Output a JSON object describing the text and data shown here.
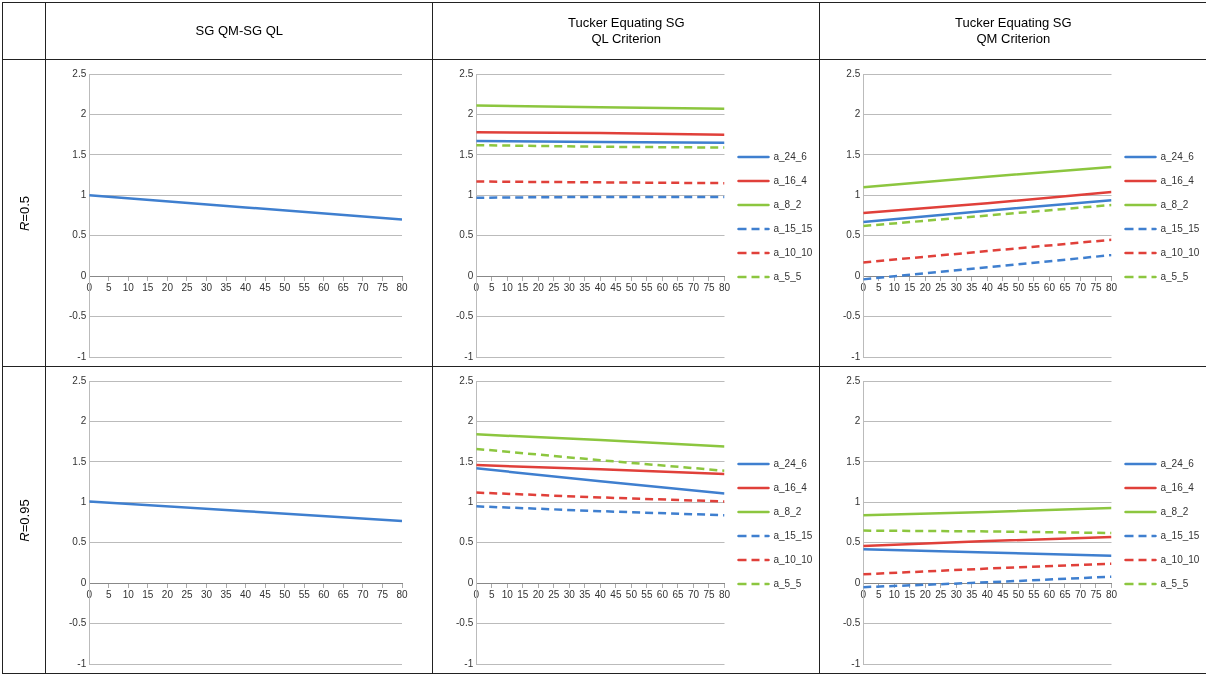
{
  "chart_data": [
    {
      "type": "line",
      "title": "SG QM-SG QL",
      "subtitle": "R=0.5",
      "xlim": [
        0,
        80
      ],
      "xticks": [
        0,
        5,
        10,
        15,
        20,
        25,
        30,
        35,
        40,
        45,
        50,
        55,
        60,
        65,
        70,
        75,
        80
      ],
      "ylim": [
        -1,
        2.5
      ],
      "yticks": [
        -1,
        -0.5,
        0,
        0.5,
        1,
        1.5,
        2,
        2.5
      ],
      "grid": "y",
      "legend": false,
      "series": [
        {
          "color": "#3f7fcf",
          "x": [
            0,
            40,
            80
          ],
          "values": [
            1.0,
            0.85,
            0.7
          ]
        }
      ]
    },
    {
      "type": "line",
      "title": "Tucker Equating SG QL Criterion",
      "xlim": [
        0,
        80
      ],
      "xticks": [
        0,
        5,
        10,
        15,
        20,
        25,
        30,
        35,
        40,
        45,
        50,
        55,
        60,
        65,
        70,
        75,
        80
      ],
      "ylim": [
        -1,
        2.5
      ],
      "yticks": [
        -1,
        -0.5,
        0,
        0.5,
        1,
        1.5,
        2,
        2.5
      ],
      "grid": "y",
      "legend": "right",
      "series": [
        {
          "name": "a_24_6",
          "color": "#3f7fcf",
          "x": [
            0,
            40,
            80
          ],
          "values": [
            1.67,
            1.66,
            1.65
          ]
        },
        {
          "name": "a_16_4",
          "color": "#e0403a",
          "x": [
            0,
            40,
            80
          ],
          "values": [
            1.78,
            1.77,
            1.75
          ]
        },
        {
          "name": "a_8_2",
          "color": "#8cc63f",
          "x": [
            0,
            40,
            80
          ],
          "values": [
            2.11,
            2.09,
            2.07
          ]
        },
        {
          "name": "a_15_15",
          "color": "#3f7fcf",
          "line_style": "dashed",
          "x": [
            0,
            40,
            80
          ],
          "values": [
            0.97,
            0.98,
            0.98
          ]
        },
        {
          "name": "a_10_10",
          "color": "#e0403a",
          "line_style": "dashed",
          "x": [
            0,
            40,
            80
          ],
          "values": [
            1.17,
            1.16,
            1.15
          ]
        },
        {
          "name": "a_5_5",
          "color": "#8cc63f",
          "line_style": "dashed",
          "x": [
            0,
            40,
            80
          ],
          "values": [
            1.62,
            1.6,
            1.59
          ]
        }
      ]
    },
    {
      "type": "line",
      "title": "Tucker Equating SG QM Criterion",
      "xlim": [
        0,
        80
      ],
      "xticks": [
        0,
        5,
        10,
        15,
        20,
        25,
        30,
        35,
        40,
        45,
        50,
        55,
        60,
        65,
        70,
        75,
        80
      ],
      "ylim": [
        -1,
        2.5
      ],
      "yticks": [
        -1,
        -0.5,
        0,
        0.5,
        1,
        1.5,
        2,
        2.5
      ],
      "grid": "y",
      "legend": "right",
      "series": [
        {
          "name": "a_24_6",
          "color": "#3f7fcf",
          "x": [
            0,
            40,
            80
          ],
          "values": [
            0.67,
            0.81,
            0.94
          ]
        },
        {
          "name": "a_16_4",
          "color": "#e0403a",
          "x": [
            0,
            40,
            80
          ],
          "values": [
            0.78,
            0.9,
            1.04
          ]
        },
        {
          "name": "a_8_2",
          "color": "#8cc63f",
          "x": [
            0,
            40,
            80
          ],
          "values": [
            1.1,
            1.23,
            1.35
          ]
        },
        {
          "name": "a_15_15",
          "color": "#3f7fcf",
          "line_style": "dashed",
          "x": [
            0,
            40,
            80
          ],
          "values": [
            -0.04,
            0.11,
            0.26
          ]
        },
        {
          "name": "a_10_10",
          "color": "#e0403a",
          "line_style": "dashed",
          "x": [
            0,
            40,
            80
          ],
          "values": [
            0.17,
            0.31,
            0.45
          ]
        },
        {
          "name": "a_5_5",
          "color": "#8cc63f",
          "line_style": "dashed",
          "x": [
            0,
            40,
            80
          ],
          "values": [
            0.62,
            0.75,
            0.88
          ]
        }
      ]
    },
    {
      "type": "line",
      "subtitle": "R=0.95",
      "xlim": [
        0,
        80
      ],
      "xticks": [
        0,
        5,
        10,
        15,
        20,
        25,
        30,
        35,
        40,
        45,
        50,
        55,
        60,
        65,
        70,
        75,
        80
      ],
      "ylim": [
        -1,
        2.5
      ],
      "yticks": [
        -1,
        -0.5,
        0,
        0.5,
        1,
        1.5,
        2,
        2.5
      ],
      "grid": "y",
      "legend": false,
      "series": [
        {
          "color": "#3f7fcf",
          "x": [
            0,
            40,
            80
          ],
          "values": [
            1.01,
            0.89,
            0.77
          ]
        }
      ]
    },
    {
      "type": "line",
      "xlim": [
        0,
        80
      ],
      "xticks": [
        0,
        5,
        10,
        15,
        20,
        25,
        30,
        35,
        40,
        45,
        50,
        55,
        60,
        65,
        70,
        75,
        80
      ],
      "ylim": [
        -1,
        2.5
      ],
      "yticks": [
        -1,
        -0.5,
        0,
        0.5,
        1,
        1.5,
        2,
        2.5
      ],
      "grid": "y",
      "legend": "right",
      "series": [
        {
          "name": "a_24_6",
          "color": "#3f7fcf",
          "x": [
            0,
            40,
            80
          ],
          "values": [
            1.42,
            1.26,
            1.11
          ]
        },
        {
          "name": "a_16_4",
          "color": "#e0403a",
          "x": [
            0,
            40,
            80
          ],
          "values": [
            1.46,
            1.41,
            1.35
          ]
        },
        {
          "name": "a_8_2",
          "color": "#8cc63f",
          "x": [
            0,
            40,
            80
          ],
          "values": [
            1.84,
            1.77,
            1.69
          ]
        },
        {
          "name": "a_15_15",
          "color": "#3f7fcf",
          "line_style": "dashed",
          "x": [
            0,
            40,
            80
          ],
          "values": [
            0.95,
            0.89,
            0.84
          ]
        },
        {
          "name": "a_10_10",
          "color": "#e0403a",
          "line_style": "dashed",
          "x": [
            0,
            40,
            80
          ],
          "values": [
            1.12,
            1.06,
            1.01
          ]
        },
        {
          "name": "a_5_5",
          "color": "#8cc63f",
          "line_style": "dashed",
          "x": [
            0,
            40,
            80
          ],
          "values": [
            1.66,
            1.52,
            1.39
          ]
        }
      ]
    },
    {
      "type": "line",
      "xlim": [
        0,
        80
      ],
      "xticks": [
        0,
        5,
        10,
        15,
        20,
        25,
        30,
        35,
        40,
        45,
        50,
        55,
        60,
        65,
        70,
        75,
        80
      ],
      "ylim": [
        -1,
        2.5
      ],
      "yticks": [
        -1,
        -0.5,
        0,
        0.5,
        1,
        1.5,
        2,
        2.5
      ],
      "grid": "y",
      "legend": "right",
      "series": [
        {
          "name": "a_24_6",
          "color": "#3f7fcf",
          "x": [
            0,
            40,
            80
          ],
          "values": [
            0.42,
            0.38,
            0.34
          ]
        },
        {
          "name": "a_16_4",
          "color": "#e0403a",
          "x": [
            0,
            40,
            80
          ],
          "values": [
            0.46,
            0.52,
            0.57
          ]
        },
        {
          "name": "a_8_2",
          "color": "#8cc63f",
          "x": [
            0,
            40,
            80
          ],
          "values": [
            0.84,
            0.88,
            0.93
          ]
        },
        {
          "name": "a_15_15",
          "color": "#3f7fcf",
          "line_style": "dashed",
          "x": [
            0,
            40,
            80
          ],
          "values": [
            -0.05,
            0.01,
            0.08
          ]
        },
        {
          "name": "a_10_10",
          "color": "#e0403a",
          "line_style": "dashed",
          "x": [
            0,
            40,
            80
          ],
          "values": [
            0.11,
            0.18,
            0.24
          ]
        },
        {
          "name": "a_5_5",
          "color": "#8cc63f",
          "line_style": "dashed",
          "x": [
            0,
            40,
            80
          ],
          "values": [
            0.65,
            0.64,
            0.62
          ]
        }
      ]
    }
  ]
}
